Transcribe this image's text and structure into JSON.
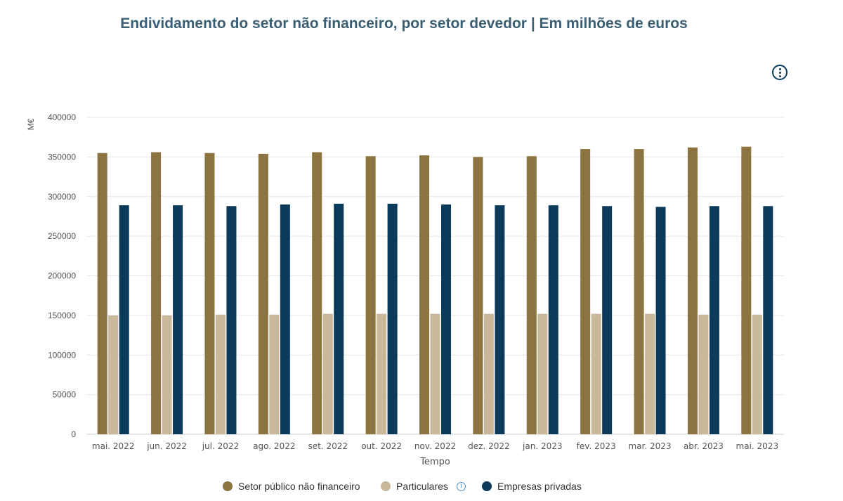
{
  "title": "Endividamento do setor não financeiro, por setor devedor | Em milhões de euros",
  "menu_icon": "more-vertical-icon",
  "chart_data": {
    "type": "bar",
    "categories": [
      "mai. 2022",
      "jun. 2022",
      "jul. 2022",
      "ago. 2022",
      "set. 2022",
      "out. 2022",
      "nov. 2022",
      "dez. 2022",
      "jan. 2023",
      "fev. 2023",
      "mar. 2023",
      "abr. 2023",
      "mai. 2023"
    ],
    "series": [
      {
        "name": "Setor público não financeiro",
        "color": "#8b7440",
        "values": [
          355000,
          356000,
          355000,
          354000,
          356000,
          351000,
          352000,
          350000,
          351000,
          360000,
          360000,
          362000,
          363000
        ]
      },
      {
        "name": "Particulares",
        "color": "#c9b99a",
        "values": [
          150000,
          150000,
          151000,
          151000,
          152000,
          152000,
          152000,
          152000,
          152000,
          152000,
          152000,
          151000,
          151000
        ]
      },
      {
        "name": "Empresas privadas",
        "color": "#0b3a5a",
        "values": [
          289000,
          289000,
          288000,
          290000,
          291000,
          291000,
          290000,
          289000,
          289000,
          288000,
          287000,
          288000,
          288000
        ]
      }
    ],
    "ylim": [
      0,
      400000
    ],
    "yticks": [
      "0",
      "50000",
      "100000",
      "150000",
      "200000",
      "250000",
      "300000",
      "350000",
      "400000"
    ],
    "xlabel": "Tempo",
    "ylabel": "M€",
    "grid": true,
    "legend": "bottom-center"
  },
  "legend_info_icon": "info-icon",
  "legend_info_symbol": "i"
}
